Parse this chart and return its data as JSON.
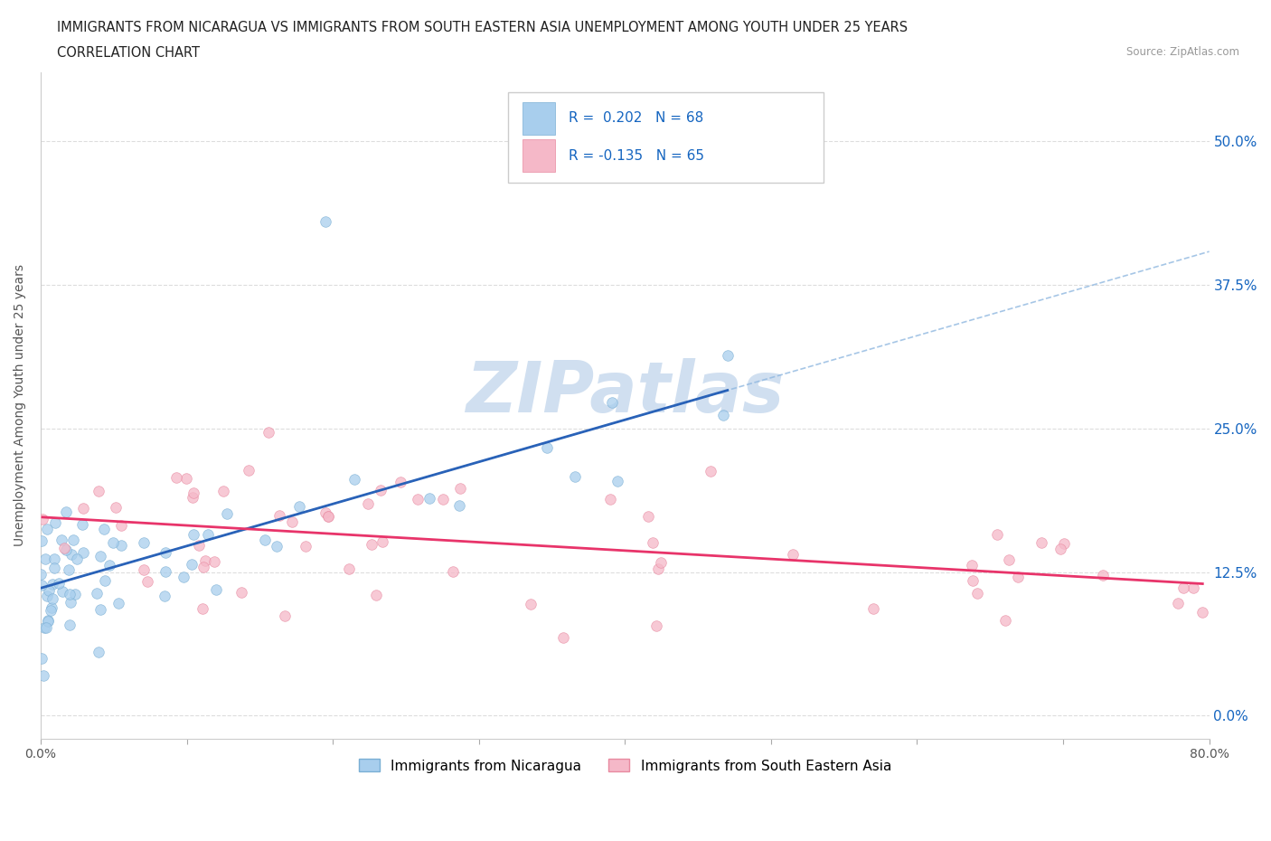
{
  "title_line1": "IMMIGRANTS FROM NICARAGUA VS IMMIGRANTS FROM SOUTH EASTERN ASIA UNEMPLOYMENT AMONG YOUTH UNDER 25 YEARS",
  "title_line2": "CORRELATION CHART",
  "source": "Source: ZipAtlas.com",
  "ylabel": "Unemployment Among Youth under 25 years",
  "xlim": [
    0.0,
    0.8
  ],
  "ylim": [
    -0.02,
    0.56
  ],
  "xticks": [
    0.0,
    0.1,
    0.2,
    0.3,
    0.4,
    0.5,
    0.6,
    0.7,
    0.8
  ],
  "xticklabels": [
    "0.0%",
    "",
    "",
    "",
    "",
    "",
    "",
    "",
    "80.0%"
  ],
  "ytick_positions": [
    0.0,
    0.125,
    0.25,
    0.375,
    0.5
  ],
  "ytick_labels": [
    "0.0%",
    "12.5%",
    "25.0%",
    "37.5%",
    "50.0%"
  ],
  "series1_name": "Immigrants from Nicaragua",
  "series1_color": "#A8CEED",
  "series1_edge": "#7AAFD4",
  "series1_R": 0.202,
  "series1_N": 68,
  "series1_trend_color": "#2962B8",
  "series2_name": "Immigrants from South Eastern Asia",
  "series2_color": "#F5B8C8",
  "series2_edge": "#E88AA0",
  "series2_R": -0.135,
  "series2_N": 65,
  "series2_trend_color": "#E8346A",
  "watermark": "ZIPatlas",
  "watermark_color": "#D0DFF0",
  "background_color": "#FFFFFF",
  "grid_color": "#DDDDDD",
  "legend_color": "#1565C0",
  "legend_box_edge": "#BBBBBB",
  "tick_color": "#AAAAAA"
}
